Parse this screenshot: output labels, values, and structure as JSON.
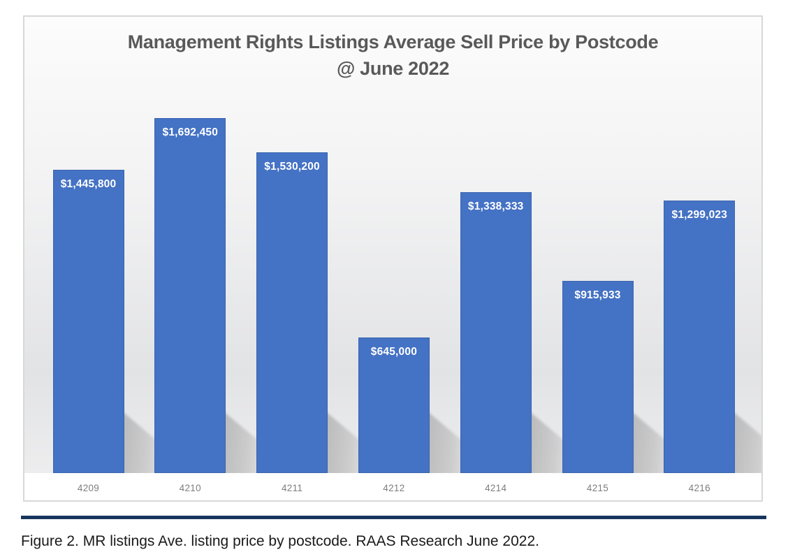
{
  "chart": {
    "title_line1": "Management Rights Listings Average Sell Price by Postcode",
    "title_line2": "@ June 2022"
  },
  "page": {
    "caption": "Figure 2. MR listings Ave. listing price by postcode. RAAS Research June 2022."
  },
  "chart_data": {
    "type": "bar",
    "title": "Management Rights Listings Average Sell Price by Postcode @ June 2022",
    "categories": [
      "4209",
      "4210",
      "4211",
      "4212",
      "4214",
      "4215",
      "4216"
    ],
    "values": [
      1445800,
      1692450,
      1530200,
      645000,
      1338333,
      915933,
      1299023
    ],
    "data_labels": [
      "$1,445,800",
      "$1,692,450",
      "$1,530,200",
      "$645,000",
      "$1,338,333",
      "$915,933",
      "$1,299,023"
    ],
    "xlabel": "",
    "ylabel": "",
    "ylim": [
      0,
      1800000
    ],
    "grid": false,
    "legend": false,
    "data_label_position": "inside-end",
    "bar_color": "#4472c4",
    "bar_border_color": "rgba(47,84,150,0.45)",
    "data_label_color": "#ffffff",
    "axis_label_color": "#7d7d7d",
    "title_color": "#595959",
    "shadow_effect": "perspective-diagonal-lower-right",
    "accent_rule_color": "#17365d"
  }
}
